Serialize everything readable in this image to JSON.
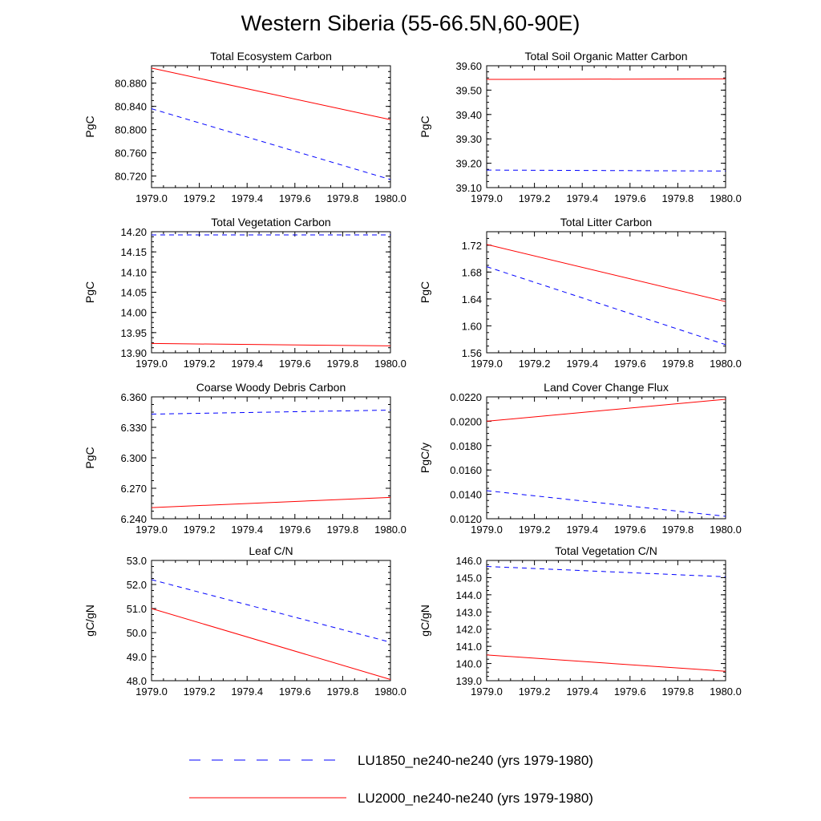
{
  "title": "Western Siberia (55-66.5N,60-90E)",
  "colors": {
    "LU1850": "#0000ff",
    "LU2000": "#ff0000",
    "frame": "#000000"
  },
  "legend": [
    {
      "series": "LU1850",
      "label": "LU1850_ne240-ne240 (yrs 1979-1980)",
      "style": "dashed"
    },
    {
      "series": "LU2000",
      "label": "LU2000_ne240-ne240 (yrs 1979-1980)",
      "style": "solid"
    }
  ],
  "chart_data": [
    {
      "type": "line",
      "title": "Total Ecosystem Carbon",
      "ylabel": "PgC",
      "xlim": [
        1979.0,
        1980.0
      ],
      "ylim": [
        80.7,
        80.91
      ],
      "xticks": [
        "1979.0",
        "1979.2",
        "1979.4",
        "1979.6",
        "1979.8",
        "1980.0"
      ],
      "yticks": [
        80.72,
        80.76,
        80.8,
        80.84,
        80.88
      ],
      "ytick_labels": [
        "80.720",
        "80.760",
        "80.800",
        "80.840",
        "80.880"
      ],
      "series": [
        {
          "name": "LU1850",
          "x": [
            1979.0,
            1980.0
          ],
          "y": [
            80.836,
            80.714
          ]
        },
        {
          "name": "LU2000",
          "x": [
            1979.0,
            1980.0
          ],
          "y": [
            80.906,
            80.817
          ]
        }
      ]
    },
    {
      "type": "line",
      "title": "Total Soil Organic Matter Carbon",
      "ylabel": "PgC",
      "xlim": [
        1979.0,
        1980.0
      ],
      "ylim": [
        39.1,
        39.6
      ],
      "xticks": [
        "1979.0",
        "1979.2",
        "1979.4",
        "1979.6",
        "1979.8",
        "1980.0"
      ],
      "yticks": [
        39.1,
        39.2,
        39.3,
        39.4,
        39.5,
        39.6
      ],
      "ytick_labels": [
        "39.10",
        "39.20",
        "39.30",
        "39.40",
        "39.50",
        "39.60"
      ],
      "series": [
        {
          "name": "LU1850",
          "x": [
            1979.0,
            1980.0
          ],
          "y": [
            39.172,
            39.168
          ]
        },
        {
          "name": "LU2000",
          "x": [
            1979.0,
            1980.0
          ],
          "y": [
            39.544,
            39.546
          ]
        }
      ]
    },
    {
      "type": "line",
      "title": "Total Vegetation Carbon",
      "ylabel": "PgC",
      "xlim": [
        1979.0,
        1980.0
      ],
      "ylim": [
        13.9,
        14.2
      ],
      "xticks": [
        "1979.0",
        "1979.2",
        "1979.4",
        "1979.6",
        "1979.8",
        "1980.0"
      ],
      "yticks": [
        13.9,
        13.95,
        14.0,
        14.05,
        14.1,
        14.15,
        14.2
      ],
      "ytick_labels": [
        "13.90",
        "13.95",
        "14.00",
        "14.05",
        "14.10",
        "14.15",
        "14.20"
      ],
      "series": [
        {
          "name": "LU1850",
          "x": [
            1979.0,
            1980.0
          ],
          "y": [
            14.192,
            14.192
          ]
        },
        {
          "name": "LU2000",
          "x": [
            1979.0,
            1980.0
          ],
          "y": [
            13.923,
            13.917
          ]
        }
      ]
    },
    {
      "type": "line",
      "title": "Total Litter Carbon",
      "ylabel": "PgC",
      "xlim": [
        1979.0,
        1980.0
      ],
      "ylim": [
        1.56,
        1.74
      ],
      "xticks": [
        "1979.0",
        "1979.2",
        "1979.4",
        "1979.6",
        "1979.8",
        "1980.0"
      ],
      "yticks": [
        1.56,
        1.6,
        1.64,
        1.68,
        1.72
      ],
      "ytick_labels": [
        "1.56",
        "1.60",
        "1.64",
        "1.68",
        "1.72"
      ],
      "series": [
        {
          "name": "LU1850",
          "x": [
            1979.0,
            1980.0
          ],
          "y": [
            1.688,
            1.572
          ]
        },
        {
          "name": "LU2000",
          "x": [
            1979.0,
            1980.0
          ],
          "y": [
            1.721,
            1.636
          ]
        }
      ]
    },
    {
      "type": "line",
      "title": "Coarse Woody Debris Carbon",
      "ylabel": "PgC",
      "xlim": [
        1979.0,
        1980.0
      ],
      "ylim": [
        6.24,
        6.36
      ],
      "xticks": [
        "1979.0",
        "1979.2",
        "1979.4",
        "1979.6",
        "1979.8",
        "1980.0"
      ],
      "yticks": [
        6.24,
        6.27,
        6.3,
        6.33,
        6.36
      ],
      "ytick_labels": [
        "6.240",
        "6.270",
        "6.300",
        "6.330",
        "6.360"
      ],
      "series": [
        {
          "name": "LU1850",
          "x": [
            1979.0,
            1980.0
          ],
          "y": [
            6.343,
            6.347
          ]
        },
        {
          "name": "LU2000",
          "x": [
            1979.0,
            1980.0
          ],
          "y": [
            6.251,
            6.261
          ]
        }
      ]
    },
    {
      "type": "line",
      "title": "Land Cover Change Flux",
      "ylabel": "PgC/y",
      "xlim": [
        1979.0,
        1980.0
      ],
      "ylim": [
        0.012,
        0.022
      ],
      "xticks": [
        "1979.0",
        "1979.2",
        "1979.4",
        "1979.6",
        "1979.8",
        "1980.0"
      ],
      "yticks": [
        0.012,
        0.014,
        0.016,
        0.018,
        0.02,
        0.022
      ],
      "ytick_labels": [
        "0.0120",
        "0.0140",
        "0.0160",
        "0.0180",
        "0.0200",
        "0.0220"
      ],
      "series": [
        {
          "name": "LU1850",
          "x": [
            1979.0,
            1980.0
          ],
          "y": [
            0.0143,
            0.0122
          ]
        },
        {
          "name": "LU2000",
          "x": [
            1979.0,
            1980.0
          ],
          "y": [
            0.02,
            0.0218
          ]
        }
      ]
    },
    {
      "type": "line",
      "title": "Leaf C/N",
      "ylabel": "gC/gN",
      "xlim": [
        1979.0,
        1980.0
      ],
      "ylim": [
        48.0,
        53.0
      ],
      "xticks": [
        "1979.0",
        "1979.2",
        "1979.4",
        "1979.6",
        "1979.8",
        "1980.0"
      ],
      "yticks": [
        48.0,
        49.0,
        50.0,
        51.0,
        52.0,
        53.0
      ],
      "ytick_labels": [
        "48.0",
        "49.0",
        "50.0",
        "51.0",
        "52.0",
        "53.0"
      ],
      "series": [
        {
          "name": "LU1850",
          "x": [
            1979.0,
            1980.0
          ],
          "y": [
            52.2,
            49.6
          ]
        },
        {
          "name": "LU2000",
          "x": [
            1979.0,
            1980.0
          ],
          "y": [
            51.0,
            48.05
          ]
        }
      ]
    },
    {
      "type": "line",
      "title": "Total Vegetation C/N",
      "ylabel": "gC/gN",
      "xlim": [
        1979.0,
        1980.0
      ],
      "ylim": [
        139.0,
        146.0
      ],
      "xticks": [
        "1979.0",
        "1979.2",
        "1979.4",
        "1979.6",
        "1979.8",
        "1980.0"
      ],
      "yticks": [
        139.0,
        140.0,
        141.0,
        142.0,
        143.0,
        144.0,
        145.0,
        146.0
      ],
      "ytick_labels": [
        "139.0",
        "140.0",
        "141.0",
        "142.0",
        "143.0",
        "144.0",
        "145.0",
        "146.0"
      ],
      "series": [
        {
          "name": "LU1850",
          "x": [
            1979.0,
            1980.0
          ],
          "y": [
            145.65,
            145.05
          ]
        },
        {
          "name": "LU2000",
          "x": [
            1979.0,
            1980.0
          ],
          "y": [
            140.5,
            139.55
          ]
        }
      ]
    }
  ]
}
